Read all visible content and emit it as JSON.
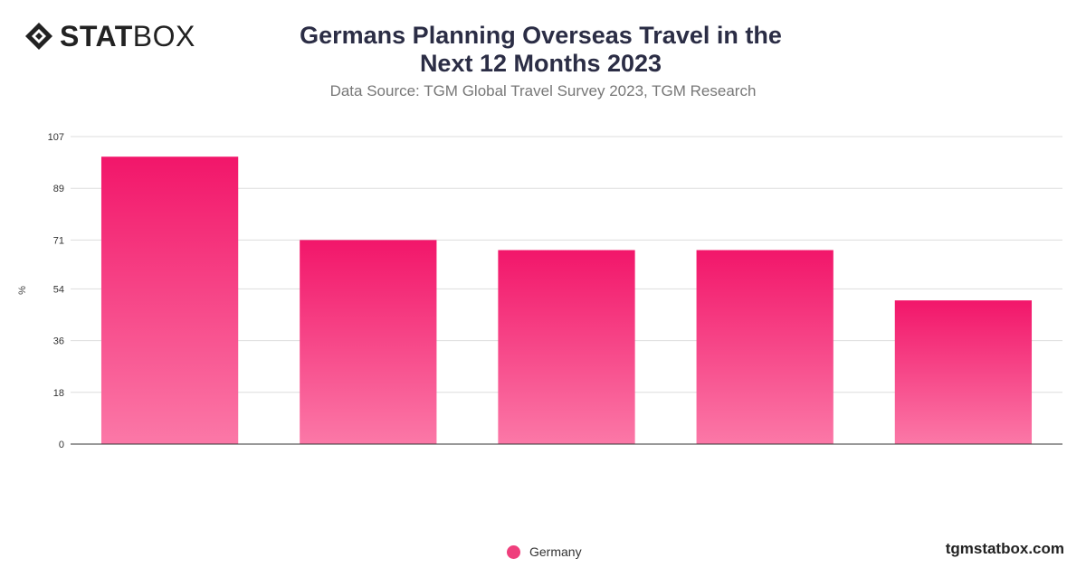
{
  "brand": {
    "logo_bold": "STAT",
    "logo_light": "BOX",
    "footer_url": "tgmstatbox.com"
  },
  "chart_data": {
    "type": "bar",
    "title": "Germans Planning Overseas Travel in the Next 12 Months 2023",
    "subtitle": "Data Source: TGM Global Travel Survey 2023, TGM Research",
    "xlabel": "",
    "ylabel": "%",
    "ylim": [
      0,
      107
    ],
    "yticks": [
      0,
      18,
      36,
      54,
      71,
      89,
      107
    ],
    "categories": [
      "",
      "",
      "",
      "",
      ""
    ],
    "series": [
      {
        "name": "Germany",
        "values": [
          100,
          71,
          67.5,
          67.5,
          50
        ]
      }
    ],
    "colors": {
      "bar_top": "#f2166a",
      "bar_bottom": "#fb78a7",
      "legend": "#ef3f7c"
    },
    "grid": true,
    "legend_position": "bottom-center"
  }
}
